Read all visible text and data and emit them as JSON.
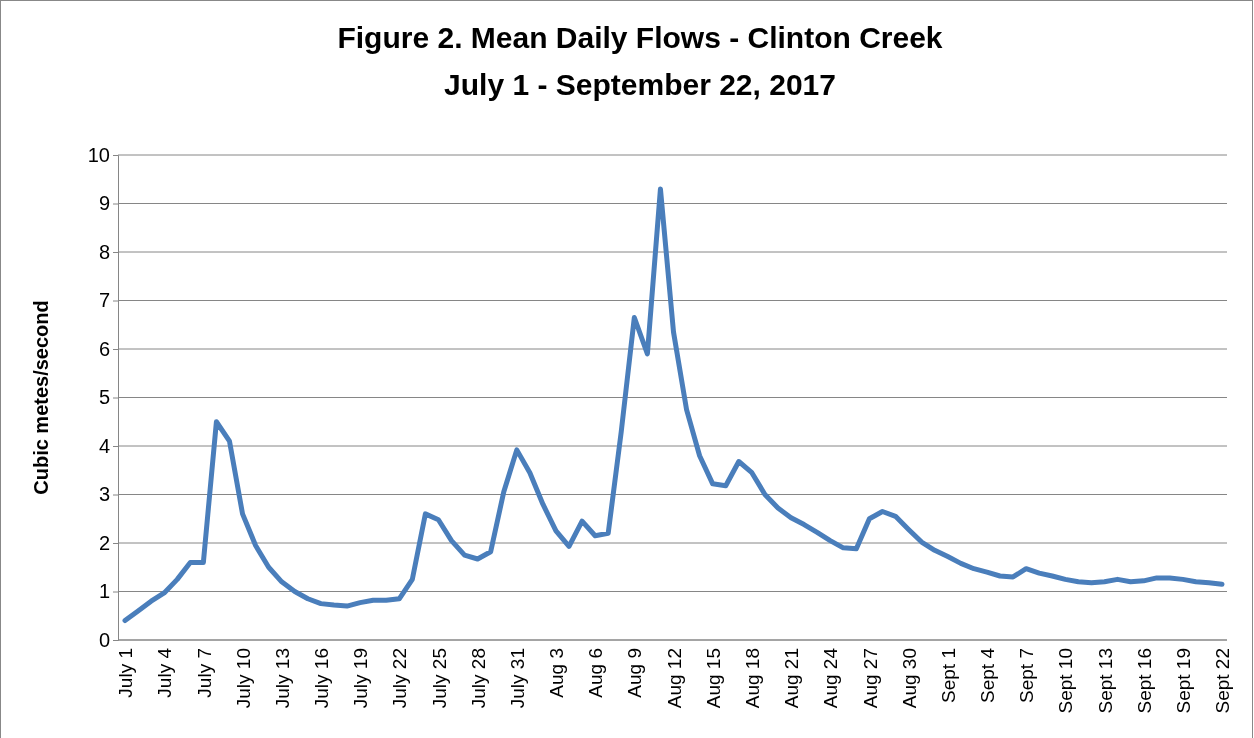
{
  "chart_data": {
    "type": "line",
    "title": "Figure 2. Mean Daily Flows - Clinton Creek",
    "subtitle": "July 1 - September 22, 2017",
    "ylabel": "Cubic metes/second",
    "categories": [
      "July 1",
      null,
      null,
      "July 4",
      null,
      null,
      "July 7",
      null,
      null,
      "July 10",
      null,
      null,
      "July 13",
      null,
      null,
      "July 16",
      null,
      null,
      "July 19",
      null,
      null,
      "July 22",
      null,
      null,
      "July 25",
      null,
      null,
      "July 28",
      null,
      null,
      "July 31",
      null,
      null,
      "Aug 3",
      null,
      null,
      "Aug 6",
      null,
      null,
      "Aug 9",
      null,
      null,
      "Aug 12",
      null,
      null,
      "Aug 15",
      null,
      null,
      "Aug 18",
      null,
      null,
      "Aug 21",
      null,
      null,
      "Aug 24",
      null,
      null,
      "Aug 27",
      null,
      null,
      "Aug 30",
      null,
      null,
      "Sept 1",
      null,
      null,
      "Sept 4",
      null,
      null,
      "Sept 7",
      null,
      null,
      "Sept 10",
      null,
      null,
      "Sept 13",
      null,
      null,
      "Sept 16",
      null,
      null,
      "Sept 19",
      null,
      null,
      "Sept 22"
    ],
    "series": [
      {
        "color": "#4a7ebb",
        "values": [
          0.4,
          0.6,
          0.8,
          0.97,
          1.25,
          1.6,
          1.6,
          4.5,
          4.1,
          2.6,
          1.95,
          1.5,
          1.2,
          1.0,
          0.85,
          0.75,
          0.72,
          0.7,
          0.77,
          0.82,
          0.82,
          0.85,
          1.25,
          2.6,
          2.48,
          2.05,
          1.75,
          1.67,
          1.82,
          3.05,
          3.92,
          3.45,
          2.8,
          2.25,
          1.93,
          2.45,
          2.15,
          2.2,
          4.3,
          6.65,
          5.9,
          9.3,
          6.35,
          4.75,
          3.8,
          3.22,
          3.18,
          3.68,
          3.45,
          3.0,
          2.72,
          2.52,
          2.38,
          2.22,
          2.05,
          1.9,
          1.88,
          2.5,
          2.65,
          2.55,
          2.28,
          2.02,
          1.85,
          1.72,
          1.58,
          1.47,
          1.4,
          1.32,
          1.3,
          1.47,
          1.38,
          1.32,
          1.25,
          1.2,
          1.18,
          1.2,
          1.25,
          1.2,
          1.22,
          1.28,
          1.28,
          1.25,
          1.2,
          1.18,
          1.15
        ]
      }
    ],
    "ylim": [
      0,
      10
    ],
    "yticks": [
      0,
      1,
      2,
      3,
      4,
      5,
      6,
      7,
      8,
      9,
      10
    ],
    "grid": "y",
    "marker": "none",
    "line_style": "solid"
  }
}
